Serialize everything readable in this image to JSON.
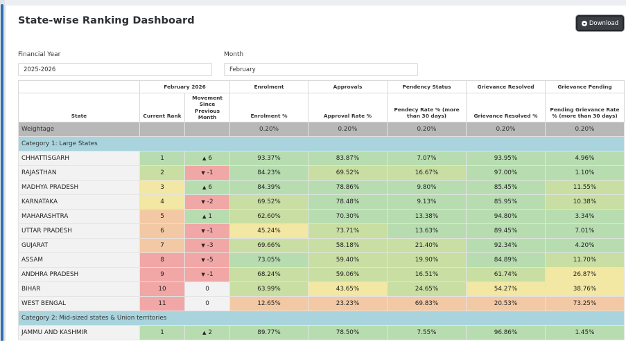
{
  "page": {
    "title": "State-wise Ranking Dashboard",
    "download_label": "Download"
  },
  "filters": {
    "fy_label": "Financial Year",
    "fy_value": "2025-2026",
    "month_label": "Month",
    "month_value": "February"
  },
  "table": {
    "group_headers": [
      "February 2026",
      "Enrolment",
      "Approvals",
      "Pendency Status",
      "Grievance Resolved",
      "Grievance Pending"
    ],
    "columns": [
      "State",
      "Current Rank",
      "Movement Since Previous Month",
      "Enrolment %",
      "Approval Rate %",
      "Pendecy Rate % (more than 30 days)",
      "Grievance Resolved %",
      "Pending Grievance Rate % (more than 30 days)"
    ],
    "weightage": {
      "label": "Weightage",
      "values": [
        "0.20%",
        "0.20%",
        "0.20%",
        "0.20%",
        "0.20%"
      ]
    },
    "categories": [
      {
        "name": "Category 1: Large States",
        "rows": [
          {
            "state": "CHHATTISGARH",
            "rank": "1",
            "dir": "up",
            "move": "6",
            "vals": [
              "93.37%",
              "83.87%",
              "7.07%",
              "93.95%",
              "4.96%"
            ]
          },
          {
            "state": "RAJASTHAN",
            "rank": "2",
            "dir": "down",
            "move": "-1",
            "vals": [
              "84.23%",
              "69.52%",
              "16.67%",
              "97.00%",
              "1.10%"
            ]
          },
          {
            "state": "MADHYA PRADESH",
            "rank": "3",
            "dir": "up",
            "move": "6",
            "vals": [
              "84.39%",
              "78.86%",
              "9.80%",
              "85.45%",
              "11.55%"
            ]
          },
          {
            "state": "KARNATAKA",
            "rank": "4",
            "dir": "down",
            "move": "-2",
            "vals": [
              "69.52%",
              "78.48%",
              "9.13%",
              "85.95%",
              "10.38%"
            ]
          },
          {
            "state": "MAHARASHTRA",
            "rank": "5",
            "dir": "up",
            "move": "1",
            "vals": [
              "62.60%",
              "70.30%",
              "13.38%",
              "94.80%",
              "3.34%"
            ]
          },
          {
            "state": "UTTAR PRADESH",
            "rank": "6",
            "dir": "down",
            "move": "-1",
            "vals": [
              "45.24%",
              "73.71%",
              "13.63%",
              "89.45%",
              "7.01%"
            ]
          },
          {
            "state": "GUJARAT",
            "rank": "7",
            "dir": "down",
            "move": "-3",
            "vals": [
              "69.66%",
              "58.18%",
              "21.40%",
              "92.34%",
              "4.20%"
            ]
          },
          {
            "state": "ASSAM",
            "rank": "8",
            "dir": "down",
            "move": "-5",
            "vals": [
              "73.05%",
              "59.40%",
              "19.90%",
              "84.89%",
              "11.70%"
            ]
          },
          {
            "state": "ANDHRA PRADESH",
            "rank": "9",
            "dir": "down",
            "move": "-1",
            "vals": [
              "68.24%",
              "59.06%",
              "16.51%",
              "61.74%",
              "26.87%"
            ]
          },
          {
            "state": "BIHAR",
            "rank": "10",
            "dir": "none",
            "move": "0",
            "vals": [
              "63.99%",
              "43.65%",
              "24.65%",
              "54.27%",
              "38.76%"
            ]
          },
          {
            "state": "WEST BENGAL",
            "rank": "11",
            "dir": "none",
            "move": "0",
            "vals": [
              "12.65%",
              "23.23%",
              "69.83%",
              "20.53%",
              "73.25%"
            ]
          }
        ]
      },
      {
        "name": "Category 2: Mid-sized states & Union territories",
        "rows": [
          {
            "state": "JAMMU AND KASHMIR",
            "rank": "1",
            "dir": "up",
            "move": "2",
            "vals": [
              "89.77%",
              "78.50%",
              "7.55%",
              "96.86%",
              "1.45%"
            ]
          }
        ]
      }
    ],
    "colors": {
      "green": "#b7dcb0",
      "light_green": "#c9dea3",
      "yellow": "#f2e7a3",
      "orange": "#f2c9a4",
      "red": "#f0a7a6",
      "weightage_grey": "#b8b8b8",
      "category_blue": "#a9d4de"
    }
  }
}
